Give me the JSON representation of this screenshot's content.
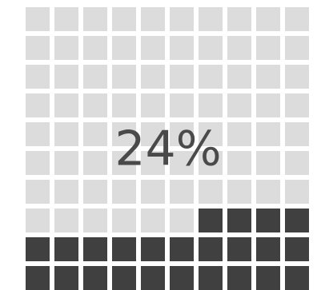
{
  "chart_data": {
    "type": "waffle",
    "values": [
      24
    ],
    "value_labels": [
      "24%"
    ],
    "color": "#404040",
    "empty_color": "#dcdcdc"
  }
}
